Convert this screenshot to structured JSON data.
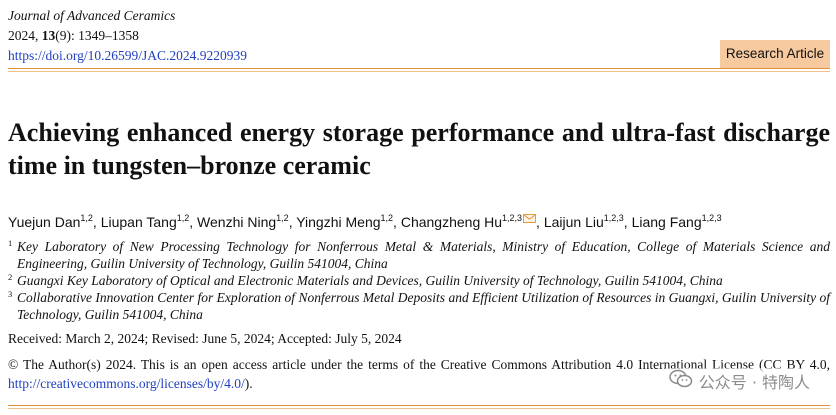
{
  "header": {
    "journal": "Journal of Advanced Ceramics",
    "year": "2024,",
    "volume": "13",
    "issue_pages": "(9): 1349–1358",
    "doi": "https://doi.org/10.26599/JAC.2024.9220939"
  },
  "badge": "Research Article",
  "title": "Achieving enhanced energy storage performance and ultra-fast discharge time in tungsten–bronze ceramic",
  "authors": [
    {
      "name": "Yuejun Dan",
      "sup": "1,2"
    },
    {
      "name": "Liupan Tang",
      "sup": "1,2"
    },
    {
      "name": "Wenzhi Ning",
      "sup": "1,2"
    },
    {
      "name": "Yingzhi Meng",
      "sup": "1,2"
    },
    {
      "name": "Changzheng Hu",
      "sup": "1,2,3"
    },
    {
      "name": "Laijun Liu",
      "sup": "1,2,3"
    },
    {
      "name": "Liang Fang",
      "sup": "1,2,3"
    }
  ],
  "affiliations": [
    {
      "num": "1",
      "text": "Key Laboratory of New Processing Technology for Nonferrous Metal & Materials, Ministry of Education, College of Materials Science and Engineering, Guilin University of Technology, Guilin 541004, China"
    },
    {
      "num": "2",
      "text": "Guangxi Key Laboratory of Optical and Electronic Materials and Devices, Guilin University of Technology, Guilin 541004, China"
    },
    {
      "num": "3",
      "text": "Collaborative Innovation Center for Exploration of Nonferrous Metal Deposits and Efficient Utilization of Resources in Guangxi, Guilin University of Technology, Guilin 541004, China"
    }
  ],
  "dates": "Received: March 2, 2024; Revised: June 5, 2024; Accepted: July 5, 2024",
  "license": {
    "text": "© The Author(s) 2024. This is an open access article under the terms of the Creative Commons Attribution 4.0 International License (CC BY 4.0, ",
    "url": "http://creativecommons.org/licenses/by/4.0/",
    "tail": ")."
  },
  "watermark": "公众号 · 特陶人",
  "colors": {
    "accent_rule": "#e0913e",
    "badge_bg": "#f6c99e",
    "link": "#1f3fbf",
    "corresponding_icon": "#e89a3c"
  },
  "icons": {
    "corresponding": "envelope-icon",
    "watermark": "wechat-icon"
  }
}
